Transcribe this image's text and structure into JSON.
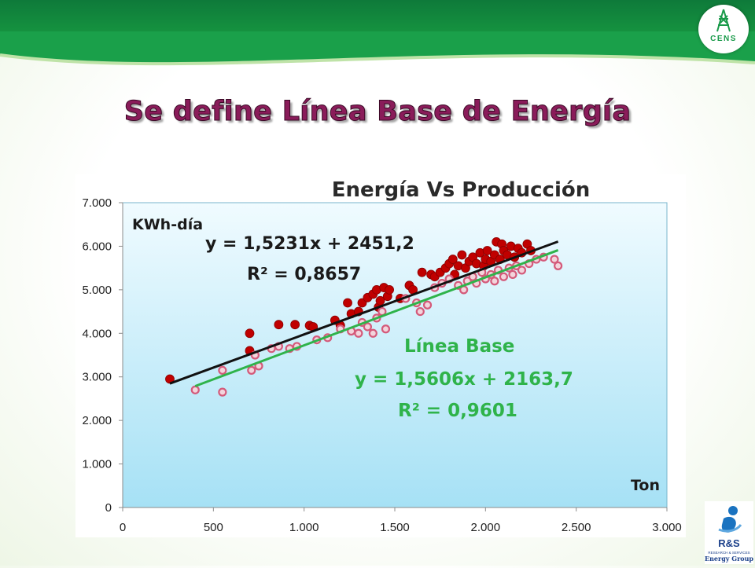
{
  "slide": {
    "title": "Se define Línea Base de Energía"
  },
  "logos": {
    "top_right": {
      "name": "CENS",
      "text": "CENS",
      "color": "#1a9a4a"
    },
    "bottom_right": {
      "name": "R&S Energy Group",
      "text": "R&S",
      "sub1": "RESEARCH & SERVICES",
      "sub2": "Energy Group"
    }
  },
  "colors": {
    "title": "#8a1c5a",
    "band": "#15913f",
    "plot_bg_top": "#f0fbff",
    "plot_bg_bottom": "#a6e1f5",
    "series_actual": "#c00000",
    "series_base": "#d45a7a",
    "trend_actual": "#111111",
    "trend_base": "#2fb34a",
    "annotation_base": "#2fb34a"
  },
  "chart_data": {
    "type": "scatter",
    "title": "Energía Vs Producción",
    "ylabel": "KWh-día",
    "xlabel": "Ton",
    "xlim": [
      0,
      3000
    ],
    "ylim": [
      0,
      7000
    ],
    "x_ticks": [
      "0",
      "500",
      "1.000",
      "1.500",
      "2.000",
      "2.500",
      "3.000"
    ],
    "y_ticks": [
      "0",
      "1.000",
      "2.000",
      "3.000",
      "4.000",
      "5.000",
      "6.000",
      "7.000"
    ],
    "grid": false,
    "annotations": {
      "actual_eq": "y = 1,5231x + 2451,2",
      "actual_r2": "R² = 0,8657",
      "base_label": "Línea Base",
      "base_eq": "y = 1,5606x + 2163,7",
      "base_r2": "R² = 0,9601"
    },
    "trendlines": [
      {
        "series": "actual",
        "slope": 1.5231,
        "intercept": 2451.2,
        "x_range": [
          260,
          2400
        ]
      },
      {
        "series": "base",
        "slope": 1.5606,
        "intercept": 2163.7,
        "x_range": [
          400,
          2400
        ]
      }
    ],
    "series": [
      {
        "id": "actual",
        "points": [
          [
            260,
            2950
          ],
          [
            700,
            4000
          ],
          [
            700,
            3600
          ],
          [
            860,
            4200
          ],
          [
            950,
            4200
          ],
          [
            1030,
            4180
          ],
          [
            1050,
            4150
          ],
          [
            1170,
            4300
          ],
          [
            1200,
            4180
          ],
          [
            1240,
            4700
          ],
          [
            1260,
            4450
          ],
          [
            1300,
            4500
          ],
          [
            1320,
            4700
          ],
          [
            1350,
            4820
          ],
          [
            1380,
            4900
          ],
          [
            1400,
            5000
          ],
          [
            1410,
            4600
          ],
          [
            1420,
            4750
          ],
          [
            1440,
            5050
          ],
          [
            1460,
            4850
          ],
          [
            1470,
            5000
          ],
          [
            1530,
            4800
          ],
          [
            1580,
            5100
          ],
          [
            1600,
            5000
          ],
          [
            1650,
            5400
          ],
          [
            1700,
            5350
          ],
          [
            1720,
            5300
          ],
          [
            1750,
            5400
          ],
          [
            1780,
            5500
          ],
          [
            1800,
            5600
          ],
          [
            1820,
            5700
          ],
          [
            1830,
            5350
          ],
          [
            1850,
            5550
          ],
          [
            1870,
            5800
          ],
          [
            1890,
            5500
          ],
          [
            1910,
            5650
          ],
          [
            1930,
            5750
          ],
          [
            1950,
            5600
          ],
          [
            1970,
            5850
          ],
          [
            1990,
            5550
          ],
          [
            2000,
            5700
          ],
          [
            2010,
            5900
          ],
          [
            2030,
            5650
          ],
          [
            2050,
            5800
          ],
          [
            2060,
            6100
          ],
          [
            2080,
            5700
          ],
          [
            2090,
            6050
          ],
          [
            2100,
            5900
          ],
          [
            2120,
            5800
          ],
          [
            2140,
            6000
          ],
          [
            2160,
            5750
          ],
          [
            2180,
            5950
          ],
          [
            2200,
            5850
          ],
          [
            2230,
            6050
          ],
          [
            2250,
            5900
          ]
        ]
      },
      {
        "id": "base",
        "points": [
          [
            400,
            2700
          ],
          [
            550,
            3150
          ],
          [
            550,
            2650
          ],
          [
            710,
            3150
          ],
          [
            730,
            3500
          ],
          [
            750,
            3250
          ],
          [
            820,
            3650
          ],
          [
            860,
            3700
          ],
          [
            920,
            3650
          ],
          [
            960,
            3700
          ],
          [
            1070,
            3850
          ],
          [
            1130,
            3900
          ],
          [
            1200,
            4100
          ],
          [
            1260,
            4050
          ],
          [
            1300,
            4000
          ],
          [
            1320,
            4250
          ],
          [
            1350,
            4150
          ],
          [
            1380,
            4000
          ],
          [
            1400,
            4350
          ],
          [
            1430,
            4500
          ],
          [
            1450,
            4100
          ],
          [
            1560,
            4800
          ],
          [
            1620,
            4700
          ],
          [
            1640,
            4500
          ],
          [
            1680,
            4650
          ],
          [
            1720,
            5050
          ],
          [
            1760,
            5150
          ],
          [
            1800,
            5250
          ],
          [
            1850,
            5100
          ],
          [
            1880,
            5000
          ],
          [
            1900,
            5200
          ],
          [
            1930,
            5300
          ],
          [
            1950,
            5150
          ],
          [
            1980,
            5400
          ],
          [
            2000,
            5250
          ],
          [
            2030,
            5350
          ],
          [
            2050,
            5200
          ],
          [
            2070,
            5450
          ],
          [
            2100,
            5300
          ],
          [
            2130,
            5500
          ],
          [
            2150,
            5350
          ],
          [
            2170,
            5550
          ],
          [
            2200,
            5450
          ],
          [
            2240,
            5600
          ],
          [
            2280,
            5700
          ],
          [
            2320,
            5750
          ],
          [
            2380,
            5700
          ],
          [
            2400,
            5550
          ]
        ]
      }
    ]
  }
}
